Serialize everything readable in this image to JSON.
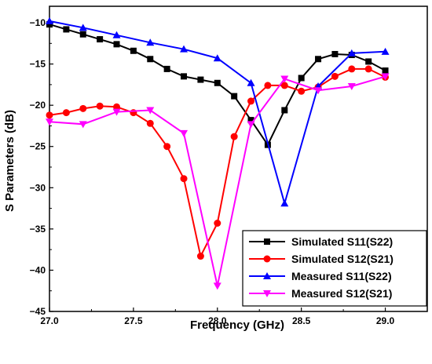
{
  "chart_data": {
    "type": "line",
    "xlabel": "Frequency (GHz)",
    "ylabel": "S Parameters (dB)",
    "xlim": [
      27.0,
      29.25
    ],
    "ylim": [
      -45,
      -8
    ],
    "xticks": [
      27.0,
      27.5,
      28.0,
      28.5,
      29.0
    ],
    "xtick_labels": [
      "27.0",
      "27.5",
      "28.0",
      "28.5",
      "29.0"
    ],
    "yticks": [
      -10,
      -15,
      -20,
      -25,
      -30,
      -35,
      -40,
      -45
    ],
    "ytick_labels": [
      "−10",
      "−15",
      "−20",
      "−25",
      "−30",
      "−35",
      "−40",
      "−45"
    ],
    "legend_position": "bottom-right",
    "series": [
      {
        "name": "Simulated S11(S22)",
        "color": "#000000",
        "marker": "square",
        "x": [
          27.0,
          27.1,
          27.2,
          27.3,
          27.4,
          27.5,
          27.6,
          27.7,
          27.8,
          27.9,
          28.0,
          28.1,
          28.2,
          28.3,
          28.4,
          28.5,
          28.6,
          28.7,
          28.8,
          28.9,
          29.0
        ],
        "y": [
          -10.2,
          -10.8,
          -11.4,
          -12.0,
          -12.6,
          -13.4,
          -14.4,
          -15.6,
          -16.5,
          -16.9,
          -17.3,
          -18.9,
          -21.8,
          -24.8,
          -20.6,
          -16.7,
          -14.4,
          -13.8,
          -13.9,
          -14.7,
          -15.8
        ]
      },
      {
        "name": "Simulated S12(S21)",
        "color": "#ff0000",
        "marker": "circle",
        "x": [
          27.0,
          27.1,
          27.2,
          27.3,
          27.4,
          27.5,
          27.6,
          27.7,
          27.8,
          27.9,
          28.0,
          28.1,
          28.2,
          28.3,
          28.4,
          28.5,
          28.6,
          28.7,
          28.8,
          28.9,
          29.0
        ],
        "y": [
          -21.2,
          -20.9,
          -20.4,
          -20.1,
          -20.2,
          -20.9,
          -22.2,
          -25.0,
          -28.9,
          -38.3,
          -34.3,
          -23.8,
          -19.5,
          -17.6,
          -17.6,
          -18.3,
          -17.8,
          -16.5,
          -15.6,
          -15.6,
          -16.6
        ]
      },
      {
        "name": "Measured S11(S22)",
        "color": "#0000ff",
        "marker": "triangle-up",
        "x": [
          27.0,
          27.2,
          27.4,
          27.6,
          27.8,
          28.0,
          28.2,
          28.4,
          28.6,
          28.8,
          29.0
        ],
        "y": [
          -9.8,
          -10.6,
          -11.5,
          -12.4,
          -13.2,
          -14.3,
          -17.3,
          -31.9,
          -17.7,
          -13.7,
          -13.5
        ]
      },
      {
        "name": "Measured S12(S21)",
        "color": "#ff00ff",
        "marker": "triangle-down",
        "x": [
          27.0,
          27.2,
          27.4,
          27.6,
          27.8,
          28.0,
          28.2,
          28.4,
          28.6,
          28.8,
          29.0
        ],
        "y": [
          -22.0,
          -22.3,
          -20.8,
          -20.6,
          -23.4,
          -41.9,
          -22.3,
          -16.8,
          -18.2,
          -17.7,
          -16.5
        ]
      }
    ]
  }
}
